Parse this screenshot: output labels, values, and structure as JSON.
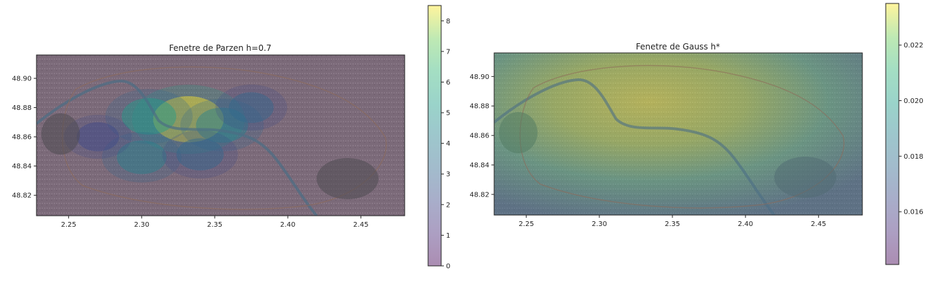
{
  "chart_data": [
    {
      "type": "heatmap",
      "title": "Fenetre de Parzen h=0.7",
      "xlabel": "",
      "ylabel": "",
      "xlim": [
        2.228,
        2.48
      ],
      "ylim": [
        48.806,
        48.916
      ],
      "xticks": [
        2.25,
        2.3,
        2.35,
        2.4,
        2.45
      ],
      "xtick_labels": [
        "2.25",
        "2.30",
        "2.35",
        "2.40",
        "2.45"
      ],
      "yticks": [
        48.82,
        48.84,
        48.86,
        48.88,
        48.9
      ],
      "ytick_labels": [
        "48.82",
        "48.84",
        "48.86",
        "48.88",
        "48.90"
      ],
      "colorbar": {
        "min": 0,
        "max": 8.5,
        "ticks": [
          0,
          1,
          2,
          3,
          4,
          5,
          6,
          7,
          8
        ],
        "tick_labels": [
          "0",
          "1",
          "2",
          "3",
          "4",
          "5",
          "6",
          "7",
          "8"
        ]
      },
      "colormap": "viridis",
      "alpha": 0.4,
      "background": "satellite map of Paris",
      "density_peaks": [
        {
          "x": 2.332,
          "y": 48.872,
          "value": 8.3
        },
        {
          "x": 2.305,
          "y": 48.874,
          "value": 5.0
        },
        {
          "x": 2.355,
          "y": 48.868,
          "value": 4.5
        },
        {
          "x": 2.3,
          "y": 48.846,
          "value": 4.0
        },
        {
          "x": 2.34,
          "y": 48.848,
          "value": 3.5
        },
        {
          "x": 2.375,
          "y": 48.88,
          "value": 3.0
        },
        {
          "x": 2.27,
          "y": 48.86,
          "value": 2.5
        }
      ],
      "grid": false
    },
    {
      "type": "heatmap",
      "title": "Fenetre de Gauss h*",
      "xlabel": "",
      "ylabel": "",
      "xlim": [
        2.228,
        2.48
      ],
      "ylim": [
        48.806,
        48.916
      ],
      "xticks": [
        2.25,
        2.3,
        2.35,
        2.4,
        2.45
      ],
      "xtick_labels": [
        "2.25",
        "2.30",
        "2.35",
        "2.40",
        "2.45"
      ],
      "yticks": [
        48.82,
        48.84,
        48.86,
        48.88,
        48.9
      ],
      "ytick_labels": [
        "48.82",
        "48.84",
        "48.86",
        "48.88",
        "48.90"
      ],
      "colorbar": {
        "min": 0.0141,
        "max": 0.0235,
        "ticks": [
          0.016,
          0.018,
          0.02,
          0.022
        ],
        "tick_labels": [
          "0.016",
          "0.018",
          "0.020",
          "0.022"
        ]
      },
      "colormap": "viridis",
      "alpha": 0.4,
      "background": "satellite map of Paris",
      "density_peaks": [
        {
          "x": 2.335,
          "y": 48.87,
          "value": 0.0234
        }
      ],
      "grid": false
    }
  ],
  "colors": {
    "viridis_low": "#440154",
    "viridis_mid": "#21918c",
    "viridis_high": "#fde725",
    "map_base": "#7c7476"
  }
}
